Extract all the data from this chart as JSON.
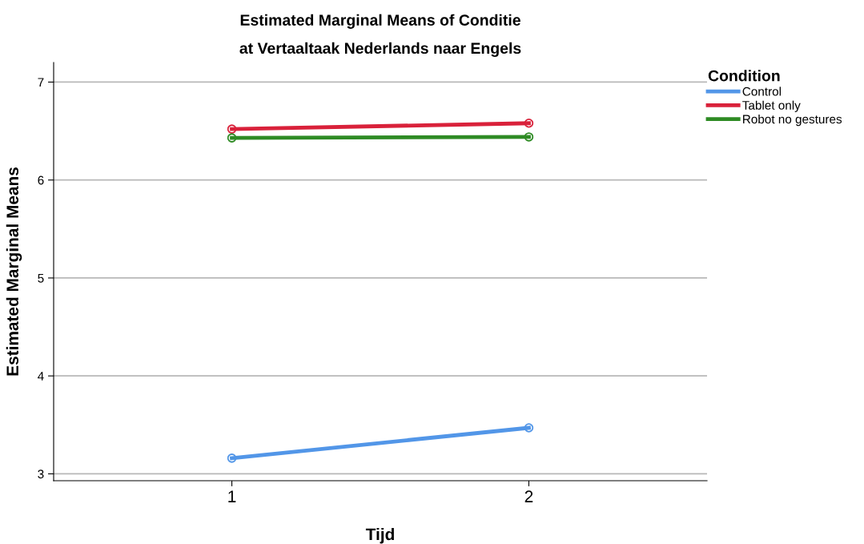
{
  "chart_data": {
    "type": "line",
    "title": "Estimated Marginal Means of Conditie\nat Vertaaltaak Nederlands naar Engels",
    "xlabel": "Tijd",
    "ylabel": "Estimated Marginal Means",
    "legend_title": "Condition",
    "categories": [
      "1",
      "2"
    ],
    "series": [
      {
        "name": "Control",
        "color": "#5296e8",
        "values": [
          3.16,
          3.47
        ]
      },
      {
        "name": "Tablet only",
        "color": "#d9213a",
        "values": [
          6.52,
          6.58
        ]
      },
      {
        "name": "Robot no gestures",
        "color": "#2e8b24",
        "values": [
          6.43,
          6.44
        ]
      }
    ],
    "ylim": [
      2.93,
      7.2
    ],
    "yticks": [
      3,
      4,
      5,
      6,
      7
    ],
    "grid": "y",
    "legend": "right",
    "marker": "circle",
    "line_style": "solid"
  }
}
